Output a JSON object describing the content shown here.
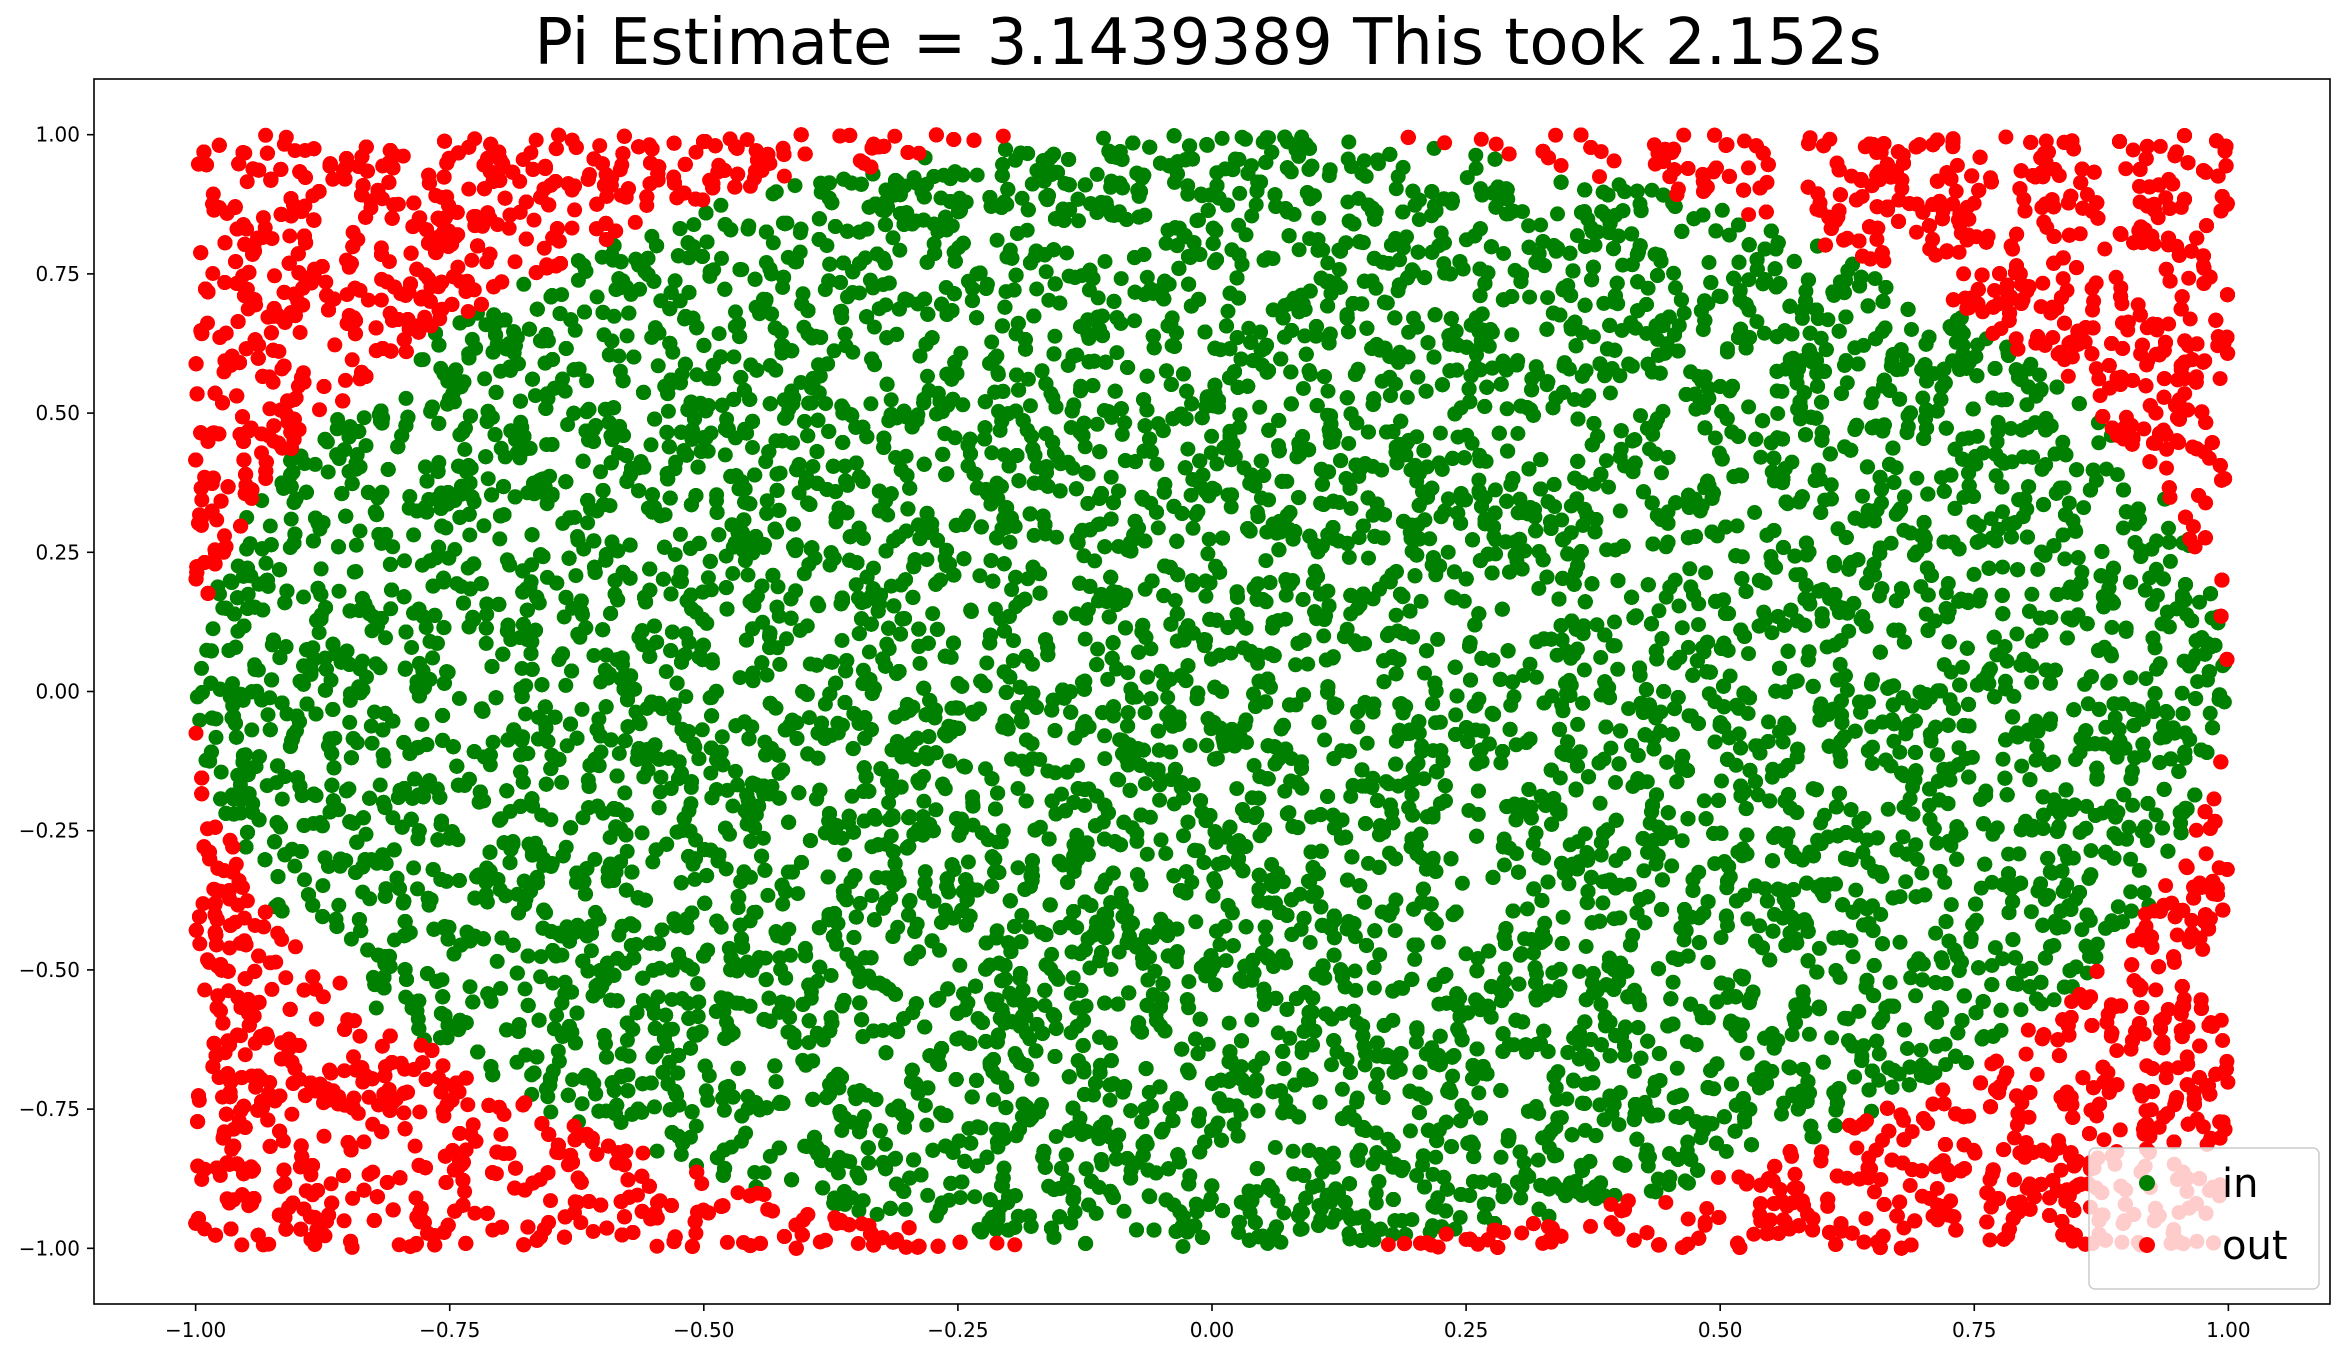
{
  "chart_data": {
    "type": "scatter",
    "title": "Pi Estimate = 3.1439389 This took 2.152s",
    "xlabel": "",
    "ylabel": "",
    "xlim": [
      -1.1,
      1.1
    ],
    "ylim": [
      -1.1,
      1.1
    ],
    "x_ticks": [
      -1.0,
      -0.75,
      -0.5,
      -0.25,
      0.0,
      0.25,
      0.5,
      0.75,
      1.0
    ],
    "x_tick_labels": [
      "−1.00",
      "−0.75",
      "−0.50",
      "−0.25",
      "0.00",
      "0.25",
      "0.50",
      "0.75",
      "1.00"
    ],
    "y_ticks": [
      1.0,
      0.75,
      0.5,
      0.25,
      0.0,
      -0.25,
      -0.5,
      -0.75,
      -1.0
    ],
    "y_tick_labels": [
      "1.00",
      "0.75",
      "0.50",
      "0.25",
      "0.00",
      "−0.25",
      "−0.50",
      "−0.75",
      "−1.00"
    ],
    "grid": false,
    "legend_position": "bottom-right",
    "series": [
      {
        "name": "in",
        "color": "#008000",
        "region": "inside unit circle",
        "x_range": [
          -1,
          1
        ],
        "y_range": [
          -1,
          1
        ]
      },
      {
        "name": "out",
        "color": "#ff0000",
        "region": "outside unit circle",
        "x_range": [
          -1,
          1
        ],
        "y_range": [
          -1,
          1
        ]
      }
    ]
  }
}
